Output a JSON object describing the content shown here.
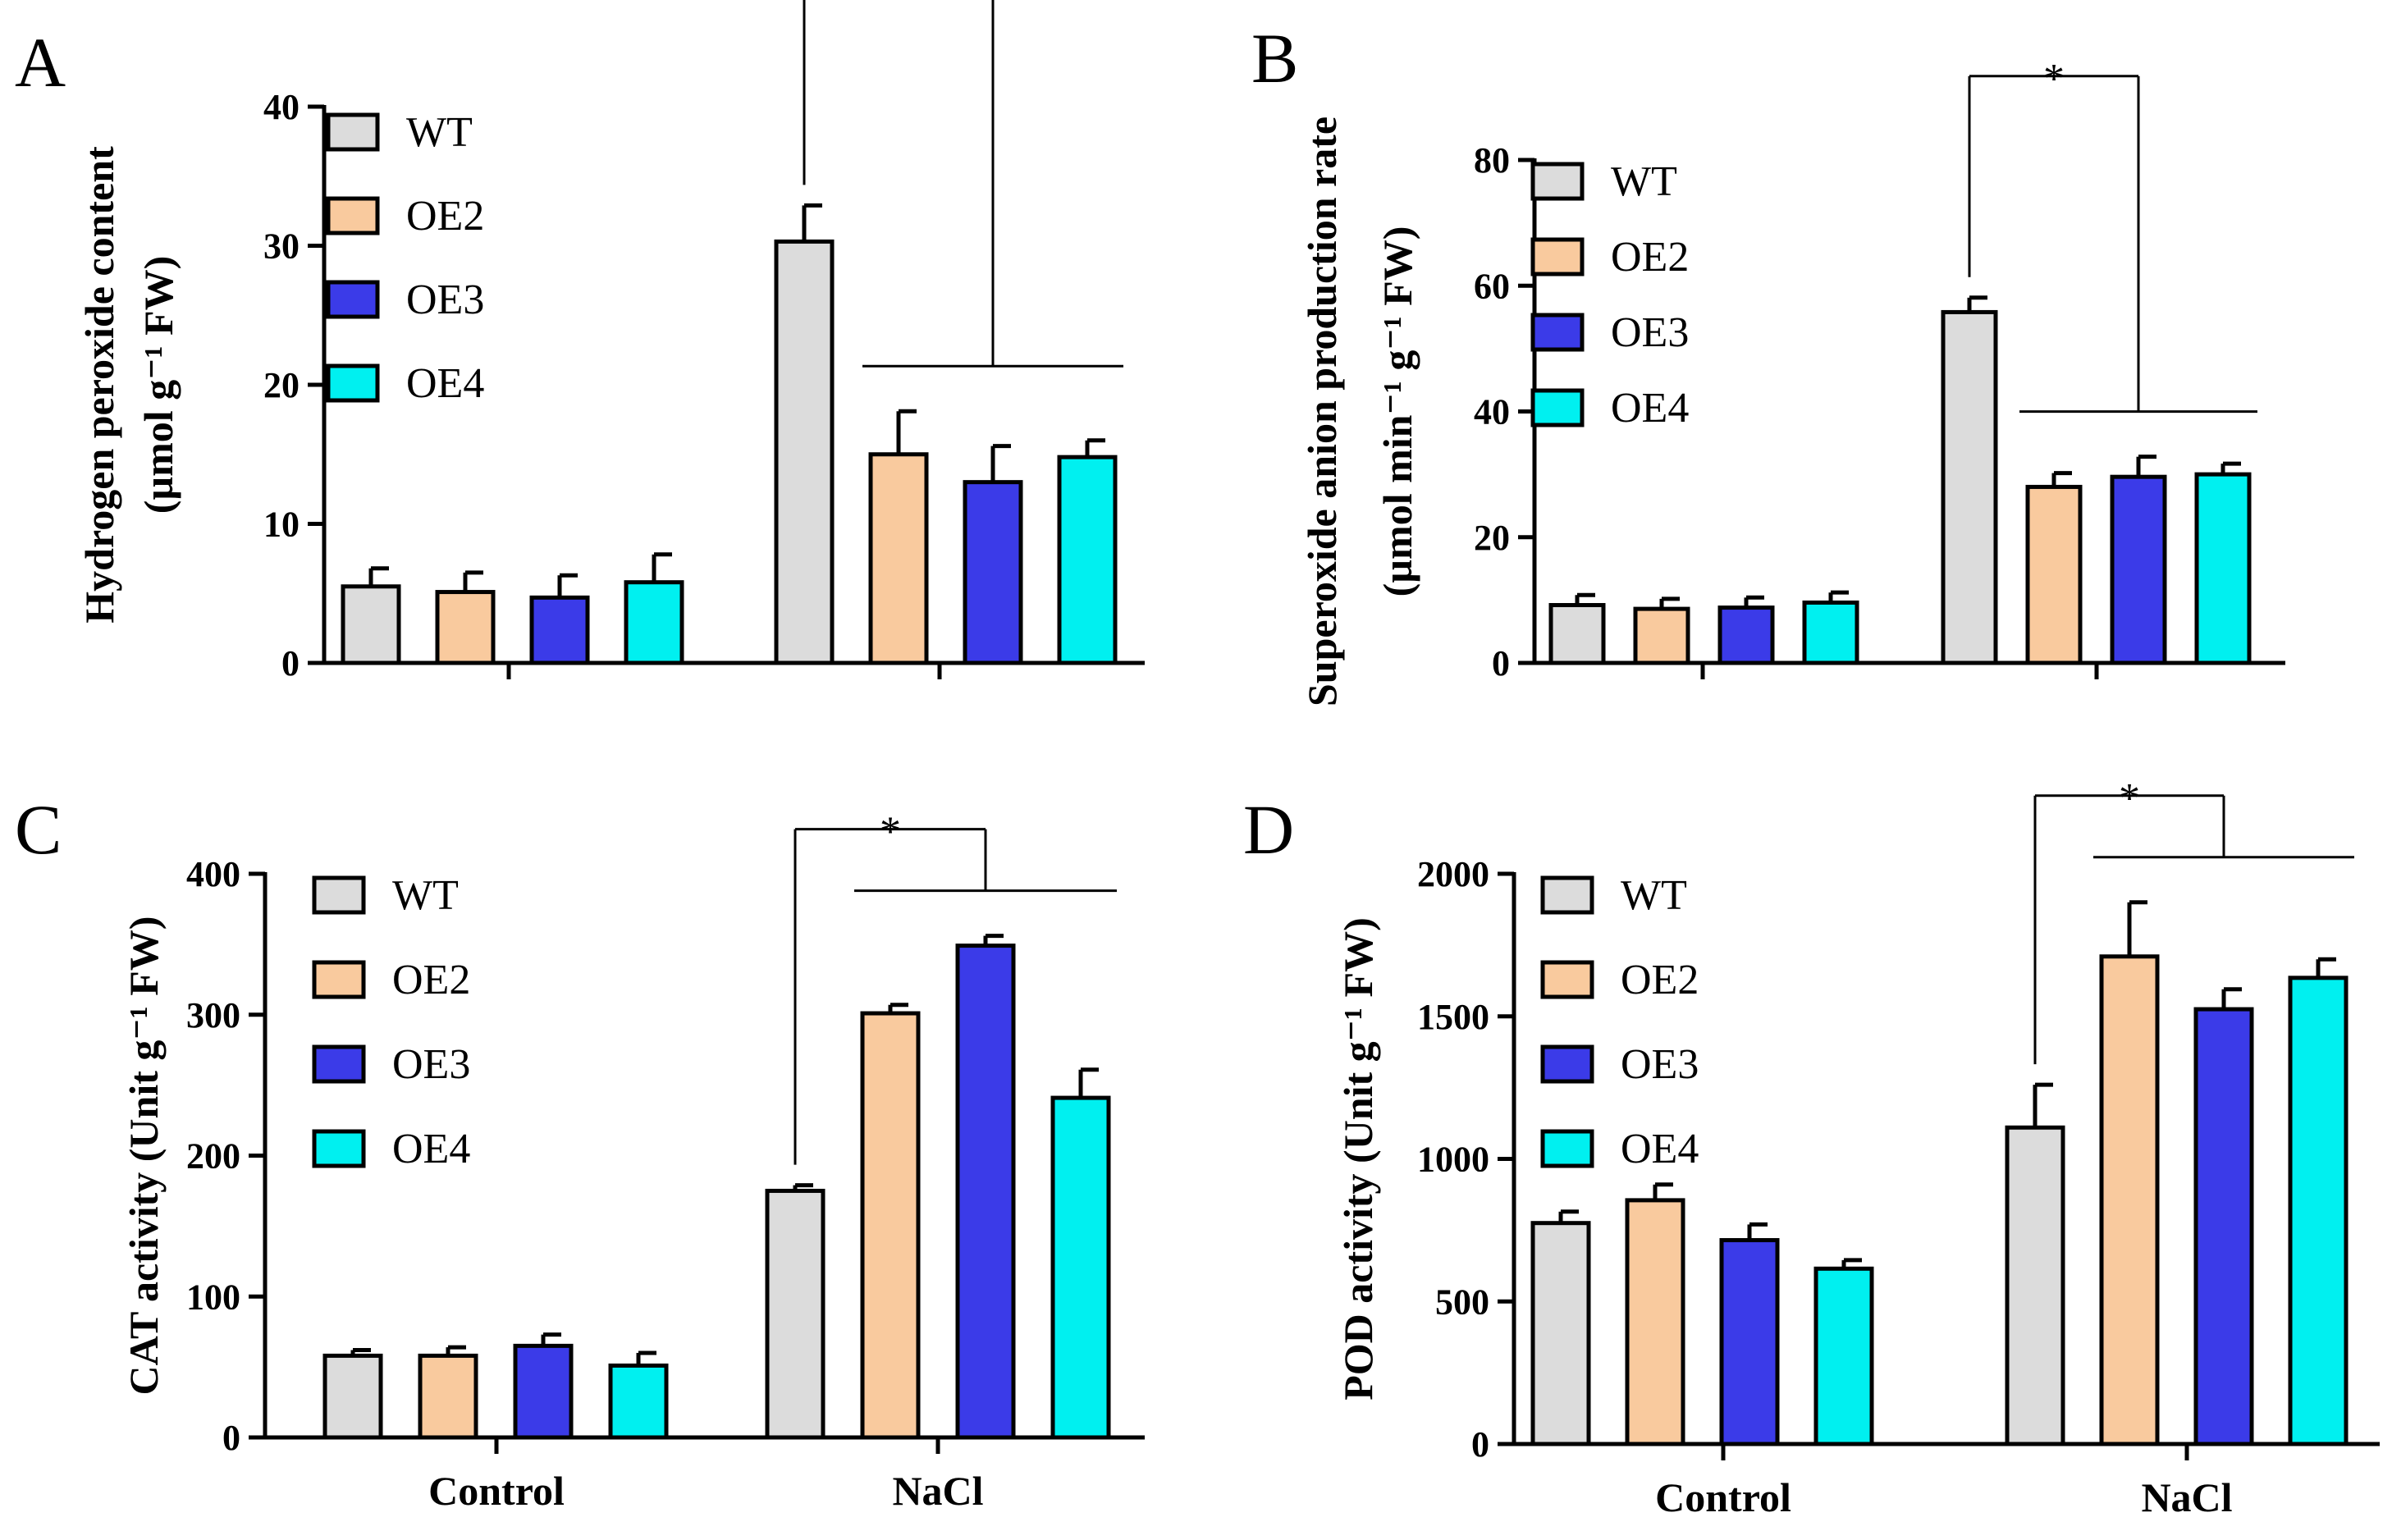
{
  "colors": {
    "WT": "#dcdcdc",
    "OE2": "#f9ca9e",
    "OE3": "#3b3be8",
    "OE4": "#00f0f0",
    "stroke": "#000000"
  },
  "chart_data": [
    {
      "panel": "A",
      "type": "bar",
      "ylabel_line1": "Hydrogen peroxide content",
      "ylabel_line2": "(µmol g⁻¹ FW)",
      "ylim": [
        0,
        40
      ],
      "yticks": [
        0,
        10,
        20,
        30,
        40
      ],
      "categories": [
        "",
        ""
      ],
      "series": [
        {
          "name": "WT",
          "values": [
            5.5,
            30.3
          ],
          "errors": [
            1.3,
            2.6
          ]
        },
        {
          "name": "OE2",
          "values": [
            5.1,
            15.0
          ],
          "errors": [
            1.4,
            3.1
          ]
        },
        {
          "name": "OE3",
          "values": [
            4.7,
            13.0
          ],
          "errors": [
            1.6,
            2.6
          ]
        },
        {
          "name": "OE4",
          "values": [
            5.8,
            14.8
          ],
          "errors": [
            2.0,
            1.2
          ]
        }
      ],
      "significance": {
        "label": "*",
        "group": 1,
        "from": "WT",
        "to": [
          "OE2",
          "OE3",
          "OE4"
        ]
      }
    },
    {
      "panel": "B",
      "type": "bar",
      "ylabel_line1": "Superoxide anion production rate",
      "ylabel_line2": "(µmol min⁻¹ g⁻¹ FW)",
      "ylim": [
        0,
        80
      ],
      "yticks": [
        0,
        20,
        40,
        60,
        80
      ],
      "categories": [
        "",
        ""
      ],
      "series": [
        {
          "name": "WT",
          "values": [
            9.2,
            55.8
          ],
          "errors": [
            1.6,
            2.3
          ]
        },
        {
          "name": "OE2",
          "values": [
            8.6,
            28.0
          ],
          "errors": [
            1.6,
            2.2
          ]
        },
        {
          "name": "OE3",
          "values": [
            8.8,
            29.6
          ],
          "errors": [
            1.6,
            3.2
          ]
        },
        {
          "name": "OE4",
          "values": [
            9.6,
            30.0
          ],
          "errors": [
            1.6,
            1.7
          ]
        }
      ],
      "significance": {
        "label": "*",
        "group": 1,
        "from": "WT",
        "to": [
          "OE2",
          "OE3",
          "OE4"
        ]
      }
    },
    {
      "panel": "C",
      "type": "bar",
      "ylabel_line1": "CAT activity (Unit g⁻¹ FW)",
      "ylabel_line2": "",
      "ylim": [
        0,
        400
      ],
      "yticks": [
        0,
        100,
        200,
        300,
        400
      ],
      "categories": [
        "Control",
        "NaCl"
      ],
      "series": [
        {
          "name": "WT",
          "values": [
            58,
            175
          ],
          "errors": [
            4,
            4
          ]
        },
        {
          "name": "OE2",
          "values": [
            58,
            301
          ],
          "errors": [
            6,
            6
          ]
        },
        {
          "name": "OE3",
          "values": [
            65,
            349
          ],
          "errors": [
            8,
            7
          ]
        },
        {
          "name": "OE4",
          "values": [
            51,
            241
          ],
          "errors": [
            9,
            20
          ]
        }
      ],
      "significance": {
        "label": "*",
        "group": 1,
        "from": "WT",
        "to": [
          "OE2",
          "OE3",
          "OE4"
        ]
      }
    },
    {
      "panel": "D",
      "type": "bar",
      "ylabel_line1": "POD activity (Unit g⁻¹ FW)",
      "ylabel_line2": "",
      "ylim": [
        0,
        2000
      ],
      "yticks": [
        0,
        500,
        1000,
        1500,
        2000
      ],
      "categories": [
        "Control",
        "NaCl"
      ],
      "series": [
        {
          "name": "WT",
          "values": [
            775,
            1110
          ],
          "errors": [
            40,
            150
          ]
        },
        {
          "name": "OE2",
          "values": [
            855,
            1710
          ],
          "errors": [
            55,
            190
          ]
        },
        {
          "name": "OE3",
          "values": [
            715,
            1525
          ],
          "errors": [
            55,
            70
          ]
        },
        {
          "name": "OE4",
          "values": [
            615,
            1635
          ],
          "errors": [
            30,
            65
          ]
        }
      ],
      "significance": {
        "label": "*",
        "group": 1,
        "from": "WT",
        "to": [
          "OE2",
          "OE3",
          "OE4"
        ]
      }
    }
  ]
}
